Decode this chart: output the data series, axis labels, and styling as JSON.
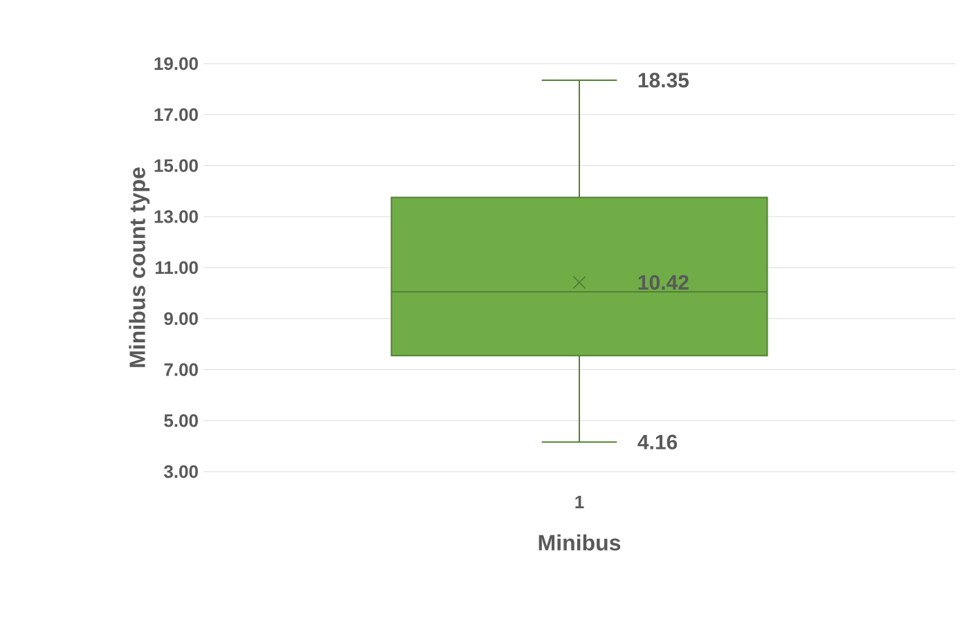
{
  "chart_data": {
    "type": "box",
    "xlabel": "Minibus",
    "ylabel": "Minibus count type",
    "categories": [
      "1"
    ],
    "boxes": [
      {
        "low": 4.16,
        "q1": 7.55,
        "median": 10.05,
        "q3": 13.75,
        "high": 18.35,
        "mean": 10.42
      }
    ],
    "color": "#70ad47",
    "ylim": [
      3,
      19
    ],
    "yticks": [
      {
        "value": 3,
        "label": "3.00"
      },
      {
        "value": 5,
        "label": "5.00"
      },
      {
        "value": 7,
        "label": "7.00"
      },
      {
        "value": 9,
        "label": "9.00"
      },
      {
        "value": 11,
        "label": "11.00"
      },
      {
        "value": 13,
        "label": "13.00"
      },
      {
        "value": 15,
        "label": "15.00"
      },
      {
        "value": 17,
        "label": "17.00"
      },
      {
        "value": 19,
        "label": "19.00"
      }
    ],
    "grid": "y",
    "annotations": [
      {
        "text": "18.35",
        "x": "1",
        "y": 18.35
      },
      "10.42",
      {
        "text": "4.16",
        "x": "1",
        "y": 4.16
      }
    ]
  }
}
